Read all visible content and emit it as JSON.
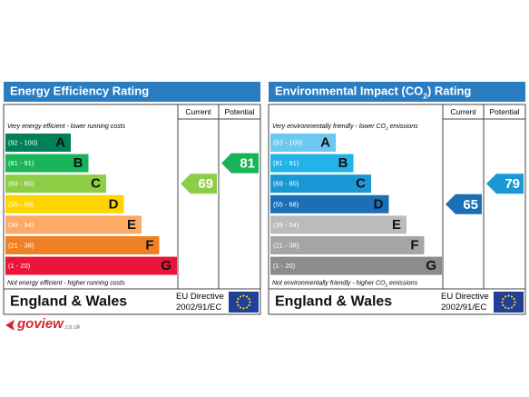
{
  "panels": [
    {
      "title": [
        "Energy Efficiency Rating"
      ],
      "columns": [
        "Current",
        "Potential"
      ],
      "top_note": [
        "Very energy efficient - lower running costs"
      ],
      "bottom_note": [
        "Not energy efficient - higher running costs"
      ],
      "bands": [
        {
          "range": "(92 - 100)",
          "letter": "A",
          "color": "#008054"
        },
        {
          "range": "(81 - 91)",
          "letter": "B",
          "color": "#19b459"
        },
        {
          "range": "(69 - 80)",
          "letter": "C",
          "color": "#8dce46"
        },
        {
          "range": "(55 - 68)",
          "letter": "D",
          "color": "#ffd500"
        },
        {
          "range": "(39 - 54)",
          "letter": "E",
          "color": "#fcaa65"
        },
        {
          "range": "(21 - 38)",
          "letter": "F",
          "color": "#ef8023"
        },
        {
          "range": "(1 - 20)",
          "letter": "G",
          "color": "#e9153b"
        }
      ],
      "current": 69,
      "potential": 81,
      "region": "England & Wales",
      "directive": [
        "EU Directive",
        "2002/91/EC"
      ]
    },
    {
      "title": [
        "Environmental Impact (CO",
        "2",
        ") Rating"
      ],
      "columns": [
        "Current",
        "Potential"
      ],
      "top_note": [
        "Very environmentally friendly - lower CO",
        "2",
        " emissions"
      ],
      "bottom_note": [
        "Not environmentally friendly - higher CO",
        "2",
        " emissions"
      ],
      "bands": [
        {
          "range": "(92 - 100)",
          "letter": "A",
          "color": "#6cc8f0"
        },
        {
          "range": "(81 - 91)",
          "letter": "B",
          "color": "#22b3e8"
        },
        {
          "range": "(69 - 80)",
          "letter": "C",
          "color": "#1a98d6"
        },
        {
          "range": "(55 - 68)",
          "letter": "D",
          "color": "#1a6fb7"
        },
        {
          "range": "(39 - 54)",
          "letter": "E",
          "color": "#bbbbbb"
        },
        {
          "range": "(21 - 38)",
          "letter": "F",
          "color": "#a5a5a5"
        },
        {
          "range": "(1 - 20)",
          "letter": "G",
          "color": "#8c8c8c"
        }
      ],
      "current": 65,
      "potential": 79,
      "region": "England & Wales",
      "directive": [
        "EU Directive",
        "2002/91/EC"
      ]
    }
  ],
  "logo": {
    "name": "goview",
    "suffix": ".co.uk"
  }
}
